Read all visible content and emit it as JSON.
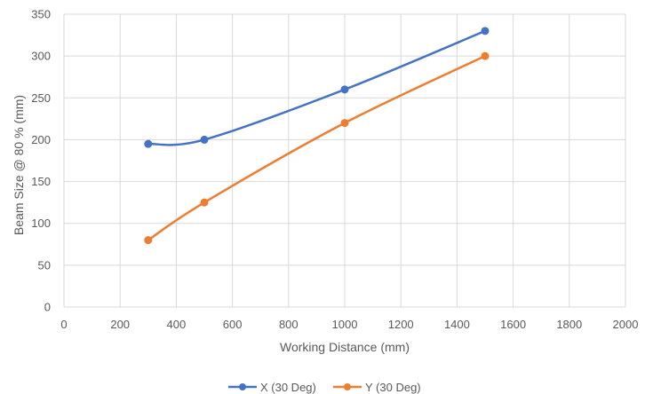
{
  "chart_data": {
    "type": "line",
    "title": "",
    "xlabel": "Working Distance (mm)",
    "ylabel": "Beam Size @ 80 % (mm)",
    "xlim": [
      0,
      2000
    ],
    "ylim": [
      0,
      350
    ],
    "x_ticks": [
      0,
      200,
      400,
      600,
      800,
      1000,
      1200,
      1400,
      1600,
      1800,
      2000
    ],
    "y_ticks": [
      0,
      50,
      100,
      150,
      200,
      250,
      300,
      350
    ],
    "grid": true,
    "legend_position": "bottom",
    "smooth": true,
    "series": [
      {
        "name": "X (30 Deg)",
        "color": "#4472C4",
        "x": [
          300,
          500,
          1000,
          1500
        ],
        "y": [
          195,
          200,
          260,
          330
        ]
      },
      {
        "name": "Y (30 Deg)",
        "color": "#ED7D31",
        "x": [
          300,
          500,
          1000,
          1500
        ],
        "y": [
          80,
          125,
          220,
          300
        ]
      }
    ]
  }
}
